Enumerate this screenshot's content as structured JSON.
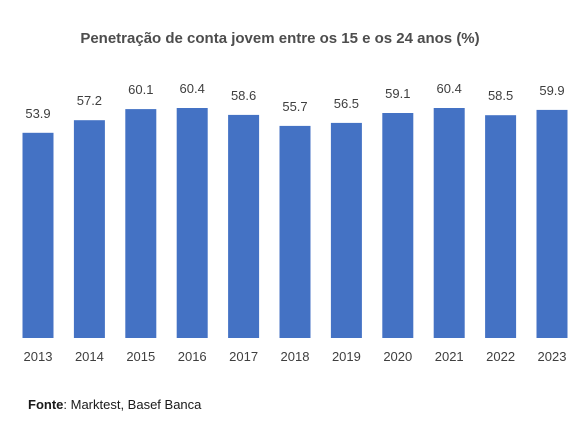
{
  "chart_data": {
    "type": "bar",
    "title": "Penetração de conta jovem entre os 15 e os 24 anos (%)",
    "categories": [
      "2013",
      "2014",
      "2015",
      "2016",
      "2017",
      "2018",
      "2019",
      "2020",
      "2021",
      "2022",
      "2023"
    ],
    "values": [
      53.9,
      57.2,
      60.1,
      60.4,
      58.6,
      55.7,
      56.5,
      59.1,
      60.4,
      58.5,
      59.9
    ],
    "value_labels": [
      "53.9",
      "57.2",
      "60.1",
      "60.4",
      "58.6",
      "55.7",
      "56.5",
      "59.1",
      "60.4",
      "58.5",
      "59.9"
    ],
    "ylim": [
      0,
      60.4
    ],
    "grid": false,
    "bar_color": "#4472c4"
  },
  "source": {
    "label": "Fonte",
    "text": ": Marktest, Basef Banca"
  }
}
